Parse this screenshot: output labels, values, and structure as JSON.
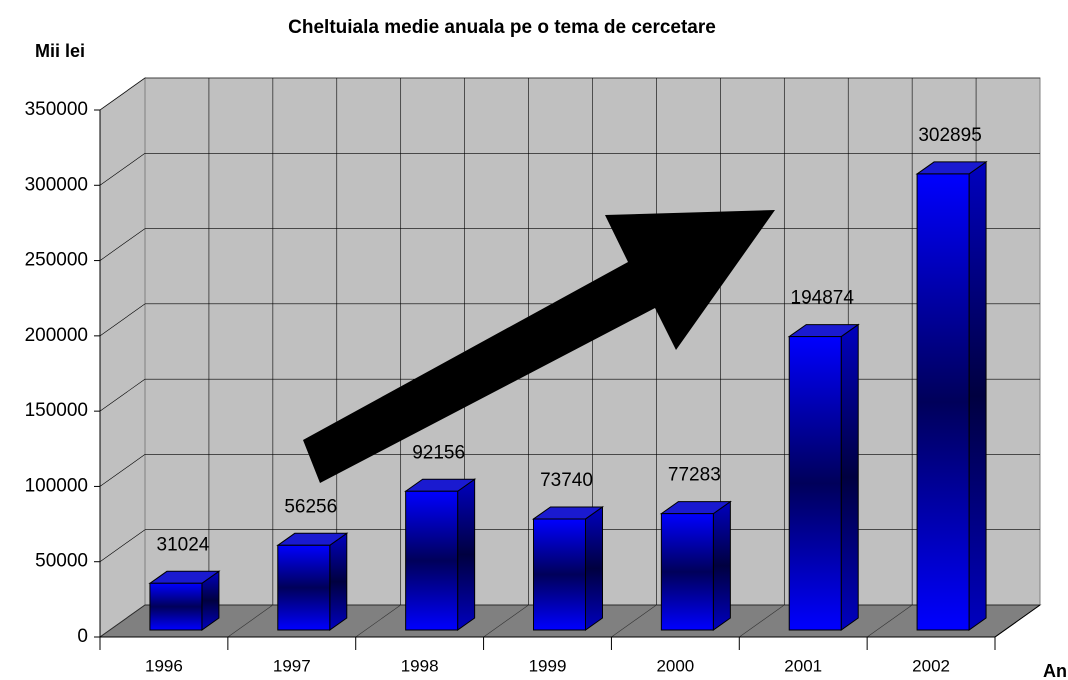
{
  "chart_data": {
    "type": "bar3d",
    "title": "Cheltuiala medie anuala pe o tema de cercetare",
    "y_label": "Mii lei",
    "x_label": "Ani",
    "categories": [
      "1996",
      "1997",
      "1998",
      "1999",
      "2000",
      "2001",
      "2002"
    ],
    "values": [
      31024,
      56256,
      92156,
      73740,
      77283,
      194874,
      302895
    ],
    "color": "#0000ff",
    "ylim": [
      0,
      350000
    ],
    "yticks": [
      0,
      50000,
      100000,
      150000,
      200000,
      250000,
      300000,
      350000
    ],
    "grid": true
  }
}
